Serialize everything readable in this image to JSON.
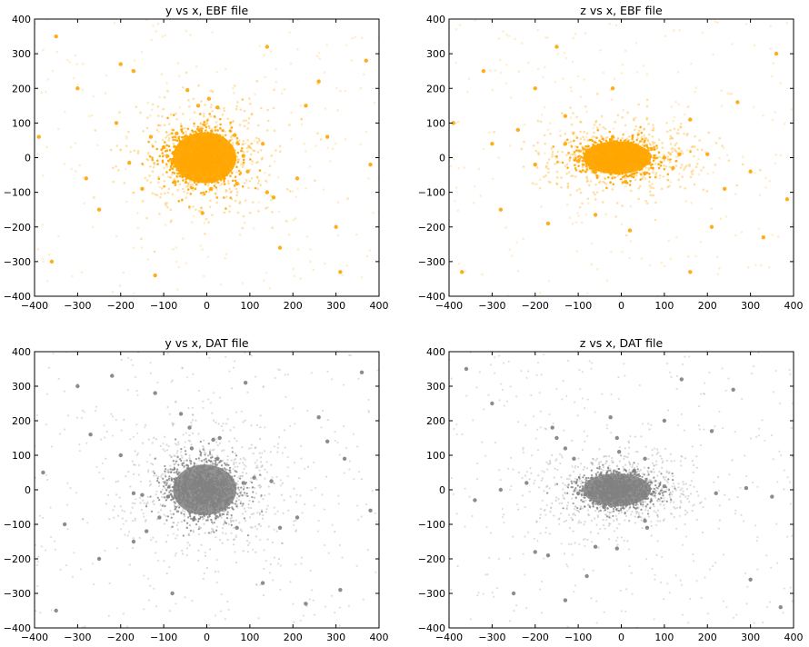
{
  "chart_data": [
    {
      "type": "scatter",
      "title": "y vs x, EBF file",
      "xlabel": "",
      "ylabel": "",
      "xlim": [
        -400,
        400
      ],
      "ylim": [
        -400,
        400
      ],
      "xticks": [
        "−400",
        "−300",
        "−200",
        "−100",
        "0",
        "100",
        "200",
        "300",
        "400"
      ],
      "yticks": [
        "−400",
        "−300",
        "−200",
        "−100",
        "0",
        "100",
        "200",
        "300",
        "400"
      ],
      "color": "#FFA500",
      "grid": false,
      "series": [
        {
          "points": [
            [
              0,
              0
            ],
            [
              -30,
              10
            ],
            [
              25,
              -15
            ],
            [
              -60,
              40
            ],
            [
              55,
              30
            ],
            [
              -45,
              -50
            ],
            [
              40,
              -60
            ],
            [
              -80,
              -10
            ],
            [
              85,
              5
            ],
            [
              -15,
              80
            ],
            [
              10,
              -90
            ],
            [
              -100,
              30
            ],
            [
              95,
              -40
            ],
            [
              -70,
              70
            ],
            [
              65,
              65
            ],
            [
              -75,
              -70
            ],
            [
              70,
              -75
            ],
            [
              -180,
              -15
            ],
            [
              -20,
              150
            ],
            [
              25,
              145
            ],
            [
              -45,
              195
            ],
            [
              155,
              -115
            ],
            [
              -130,
              60
            ],
            [
              130,
              40
            ],
            [
              -150,
              -90
            ],
            [
              140,
              -100
            ],
            [
              -10,
              -160
            ],
            [
              5,
              170
            ],
            [
              -210,
              100
            ],
            [
              210,
              -60
            ],
            [
              -250,
              -150
            ],
            [
              230,
              150
            ],
            [
              -300,
              200
            ],
            [
              300,
              -200
            ],
            [
              -350,
              350
            ],
            [
              370,
              280
            ],
            [
              -360,
              -300
            ],
            [
              310,
              -330
            ],
            [
              -120,
              -340
            ],
            [
              140,
              320
            ],
            [
              -200,
              270
            ],
            [
              260,
              220
            ],
            [
              -280,
              -60
            ],
            [
              280,
              60
            ],
            [
              -170,
              250
            ],
            [
              170,
              -260
            ],
            [
              -390,
              60
            ],
            [
              380,
              -20
            ]
          ]
        }
      ]
    },
    {
      "type": "scatter",
      "title": "z vs x, EBF file",
      "xlabel": "",
      "ylabel": "",
      "xlim": [
        -400,
        400
      ],
      "ylim": [
        -400,
        400
      ],
      "xticks": [
        "−400",
        "−300",
        "−200",
        "−100",
        "0",
        "100",
        "200",
        "300",
        "400"
      ],
      "yticks": [
        "−400",
        "−300",
        "−200",
        "−100",
        "0",
        "100",
        "200",
        "300",
        "400"
      ],
      "color": "#FFA500",
      "grid": false,
      "series": [
        {
          "points": [
            [
              -10,
              -5
            ],
            [
              -40,
              10
            ],
            [
              30,
              -10
            ],
            [
              -80,
              20
            ],
            [
              70,
              25
            ],
            [
              -60,
              -40
            ],
            [
              55,
              -45
            ],
            [
              -100,
              -10
            ],
            [
              100,
              0
            ],
            [
              -20,
              60
            ],
            [
              10,
              -70
            ],
            [
              120,
              -30
            ],
            [
              -130,
              40
            ],
            [
              135,
              10
            ],
            [
              -170,
              -190
            ],
            [
              -130,
              120
            ],
            [
              -60,
              -165
            ],
            [
              160,
              110
            ],
            [
              -200,
              -20
            ],
            [
              200,
              10
            ],
            [
              -240,
              80
            ],
            [
              240,
              -90
            ],
            [
              -280,
              -150
            ],
            [
              270,
              160
            ],
            [
              -320,
              250
            ],
            [
              330,
              -230
            ],
            [
              -370,
              -330
            ],
            [
              360,
              300
            ],
            [
              -150,
              320
            ],
            [
              160,
              -330
            ],
            [
              -20,
              200
            ],
            [
              20,
              -210
            ],
            [
              -300,
              40
            ],
            [
              300,
              -40
            ],
            [
              -200,
              200
            ],
            [
              210,
              -200
            ],
            [
              -390,
              100
            ],
            [
              385,
              -120
            ]
          ]
        }
      ]
    },
    {
      "type": "scatter",
      "title": "y vs x, DAT file",
      "xlabel": "",
      "ylabel": "",
      "xlim": [
        -400,
        400
      ],
      "ylim": [
        -400,
        400
      ],
      "xticks": [
        "−400",
        "−300",
        "−200",
        "−100",
        "0",
        "100",
        "200",
        "300",
        "400"
      ],
      "yticks": [
        "−400",
        "−300",
        "−200",
        "−100",
        "0",
        "100",
        "200",
        "300",
        "400"
      ],
      "color": "#808080",
      "grid": false,
      "series": [
        {
          "points": [
            [
              0,
              0
            ],
            [
              -50,
              40
            ],
            [
              45,
              -35
            ],
            [
              -90,
              -20
            ],
            [
              85,
              20
            ],
            [
              -30,
              -85
            ],
            [
              25,
              90
            ],
            [
              -40,
              180
            ],
            [
              -35,
              120
            ],
            [
              15,
              145
            ],
            [
              30,
              150
            ],
            [
              150,
              25
            ],
            [
              110,
              35
            ],
            [
              -170,
              -10
            ],
            [
              -150,
              -15
            ],
            [
              70,
              -110
            ],
            [
              -60,
              220
            ],
            [
              -110,
              -80
            ],
            [
              -140,
              -120
            ],
            [
              -170,
              -150
            ],
            [
              170,
              -110
            ],
            [
              -200,
              100
            ],
            [
              210,
              -80
            ],
            [
              -250,
              -200
            ],
            [
              260,
              210
            ],
            [
              -300,
              300
            ],
            [
              310,
              -290
            ],
            [
              -350,
              -350
            ],
            [
              360,
              340
            ],
            [
              -380,
              50
            ],
            [
              380,
              -60
            ],
            [
              -220,
              330
            ],
            [
              230,
              -330
            ],
            [
              -120,
              280
            ],
            [
              130,
              -270
            ],
            [
              -270,
              160
            ],
            [
              280,
              140
            ],
            [
              -330,
              -100
            ],
            [
              320,
              90
            ],
            [
              -80,
              -300
            ],
            [
              90,
              310
            ]
          ]
        }
      ]
    },
    {
      "type": "scatter",
      "title": "z vs x, DAT file",
      "xlabel": "",
      "ylabel": "",
      "xlim": [
        -400,
        400
      ],
      "ylim": [
        -400,
        400
      ],
      "xticks": [
        "−400",
        "−300",
        "−200",
        "−100",
        "0",
        "100",
        "200",
        "300",
        "400"
      ],
      "yticks": [
        "−400",
        "−300",
        "−200",
        "−100",
        "0",
        "100",
        "200",
        "300",
        "400"
      ],
      "color": "#808080",
      "grid": false,
      "series": [
        {
          "points": [
            [
              -10,
              0
            ],
            [
              -60,
              20
            ],
            [
              50,
              -15
            ],
            [
              -100,
              -10
            ],
            [
              100,
              10
            ],
            [
              -40,
              -50
            ],
            [
              30,
              55
            ],
            [
              -160,
              180
            ],
            [
              -150,
              150
            ],
            [
              -130,
              120
            ],
            [
              -110,
              90
            ],
            [
              -25,
              210
            ],
            [
              -10,
              150
            ],
            [
              -5,
              110
            ],
            [
              55,
              90
            ],
            [
              60,
              -110
            ],
            [
              55,
              -90
            ],
            [
              -170,
              -190
            ],
            [
              -60,
              -165
            ],
            [
              -10,
              -170
            ],
            [
              -220,
              20
            ],
            [
              220,
              -10
            ],
            [
              -280,
              0
            ],
            [
              290,
              5
            ],
            [
              -340,
              -30
            ],
            [
              350,
              -20
            ],
            [
              -200,
              -180
            ],
            [
              210,
              170
            ],
            [
              -300,
              250
            ],
            [
              300,
              -260
            ],
            [
              -360,
              350
            ],
            [
              370,
              -340
            ],
            [
              -130,
              -320
            ],
            [
              140,
              320
            ],
            [
              -250,
              -300
            ],
            [
              260,
              290
            ],
            [
              100,
              200
            ],
            [
              -80,
              -250
            ]
          ]
        }
      ]
    }
  ]
}
